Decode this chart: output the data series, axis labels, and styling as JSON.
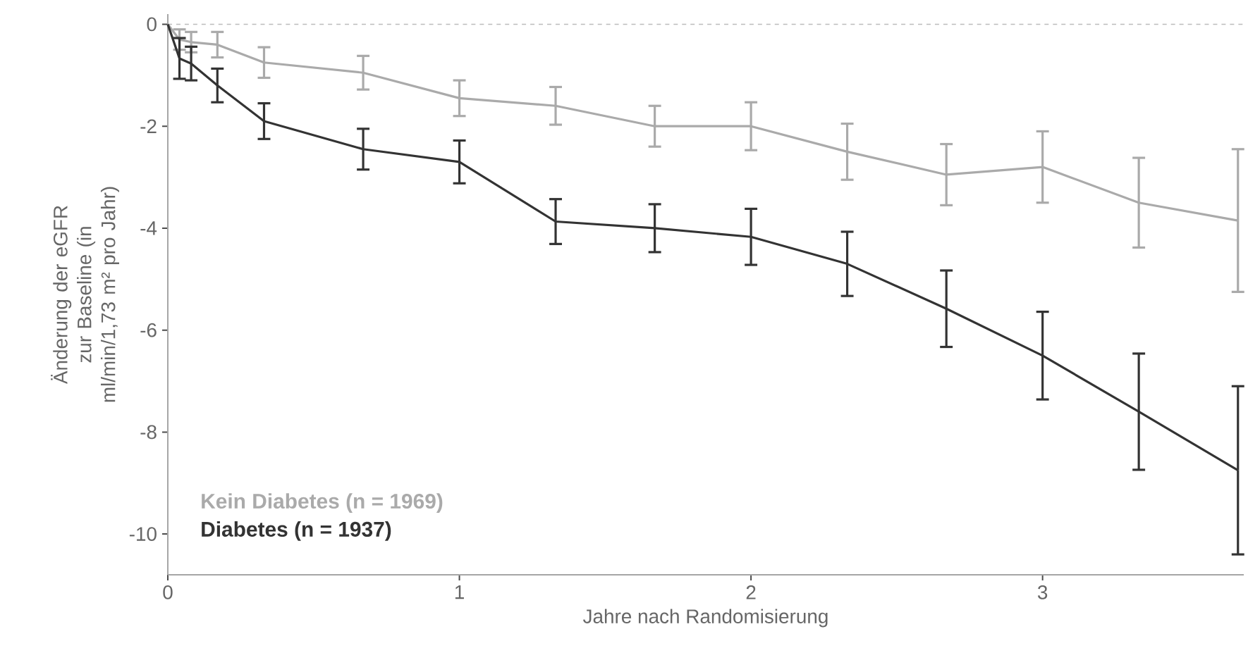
{
  "chart_data": {
    "type": "line",
    "xlabel": "Jahre nach Randomisierung",
    "ylabel": "Änderung der eGFR zur Baseline (in ml/min/1,73 m² pro Jahr)",
    "xlim": [
      0,
      3.69
    ],
    "ylim": [
      -10.8,
      0.2
    ],
    "xticks": [
      0,
      1,
      2,
      3
    ],
    "yticks": [
      -10,
      -8,
      -6,
      -4,
      -2,
      0
    ],
    "grid": false,
    "legend": "bottom left",
    "marker": "none",
    "line_style": "solid",
    "ref_lines": [
      {
        "axis": "y",
        "value": 0,
        "label": null,
        "color": "#bbbbbb",
        "line_style": "dashed"
      }
    ],
    "series": [
      {
        "name": "Kein Diabetes (n = 1969)",
        "color": "#aaaaaa",
        "x": [
          0,
          0.04,
          0.08,
          0.17,
          0.33,
          0.67,
          1,
          1.33,
          1.67,
          2,
          2.33,
          2.67,
          3,
          3.33,
          3.67
        ],
        "values": [
          0,
          -0.3,
          -0.35,
          -0.4,
          -0.75,
          -0.95,
          -1.45,
          -1.6,
          -2.0,
          -2.0,
          -2.5,
          -2.95,
          -2.8,
          -3.5,
          -3.85
        ],
        "errors": [
          null,
          0.2,
          0.2,
          0.25,
          0.3,
          0.33,
          0.35,
          0.37,
          0.4,
          0.47,
          0.55,
          0.6,
          0.7,
          0.88,
          1.4
        ]
      },
      {
        "name": "Diabetes (n = 1937)",
        "color": "#333333",
        "x": [
          0,
          0.04,
          0.08,
          0.17,
          0.33,
          0.67,
          1,
          1.33,
          1.67,
          2,
          2.33,
          2.67,
          3,
          3.33,
          3.67
        ],
        "values": [
          0,
          -0.67,
          -0.77,
          -1.2,
          -1.9,
          -2.45,
          -2.7,
          -3.87,
          -4.0,
          -4.17,
          -4.7,
          -5.58,
          -6.5,
          -7.6,
          -8.75
        ],
        "errors": [
          null,
          0.4,
          0.33,
          0.33,
          0.35,
          0.4,
          0.42,
          0.44,
          0.47,
          0.55,
          0.63,
          0.75,
          0.86,
          1.14,
          1.65
        ]
      }
    ]
  }
}
